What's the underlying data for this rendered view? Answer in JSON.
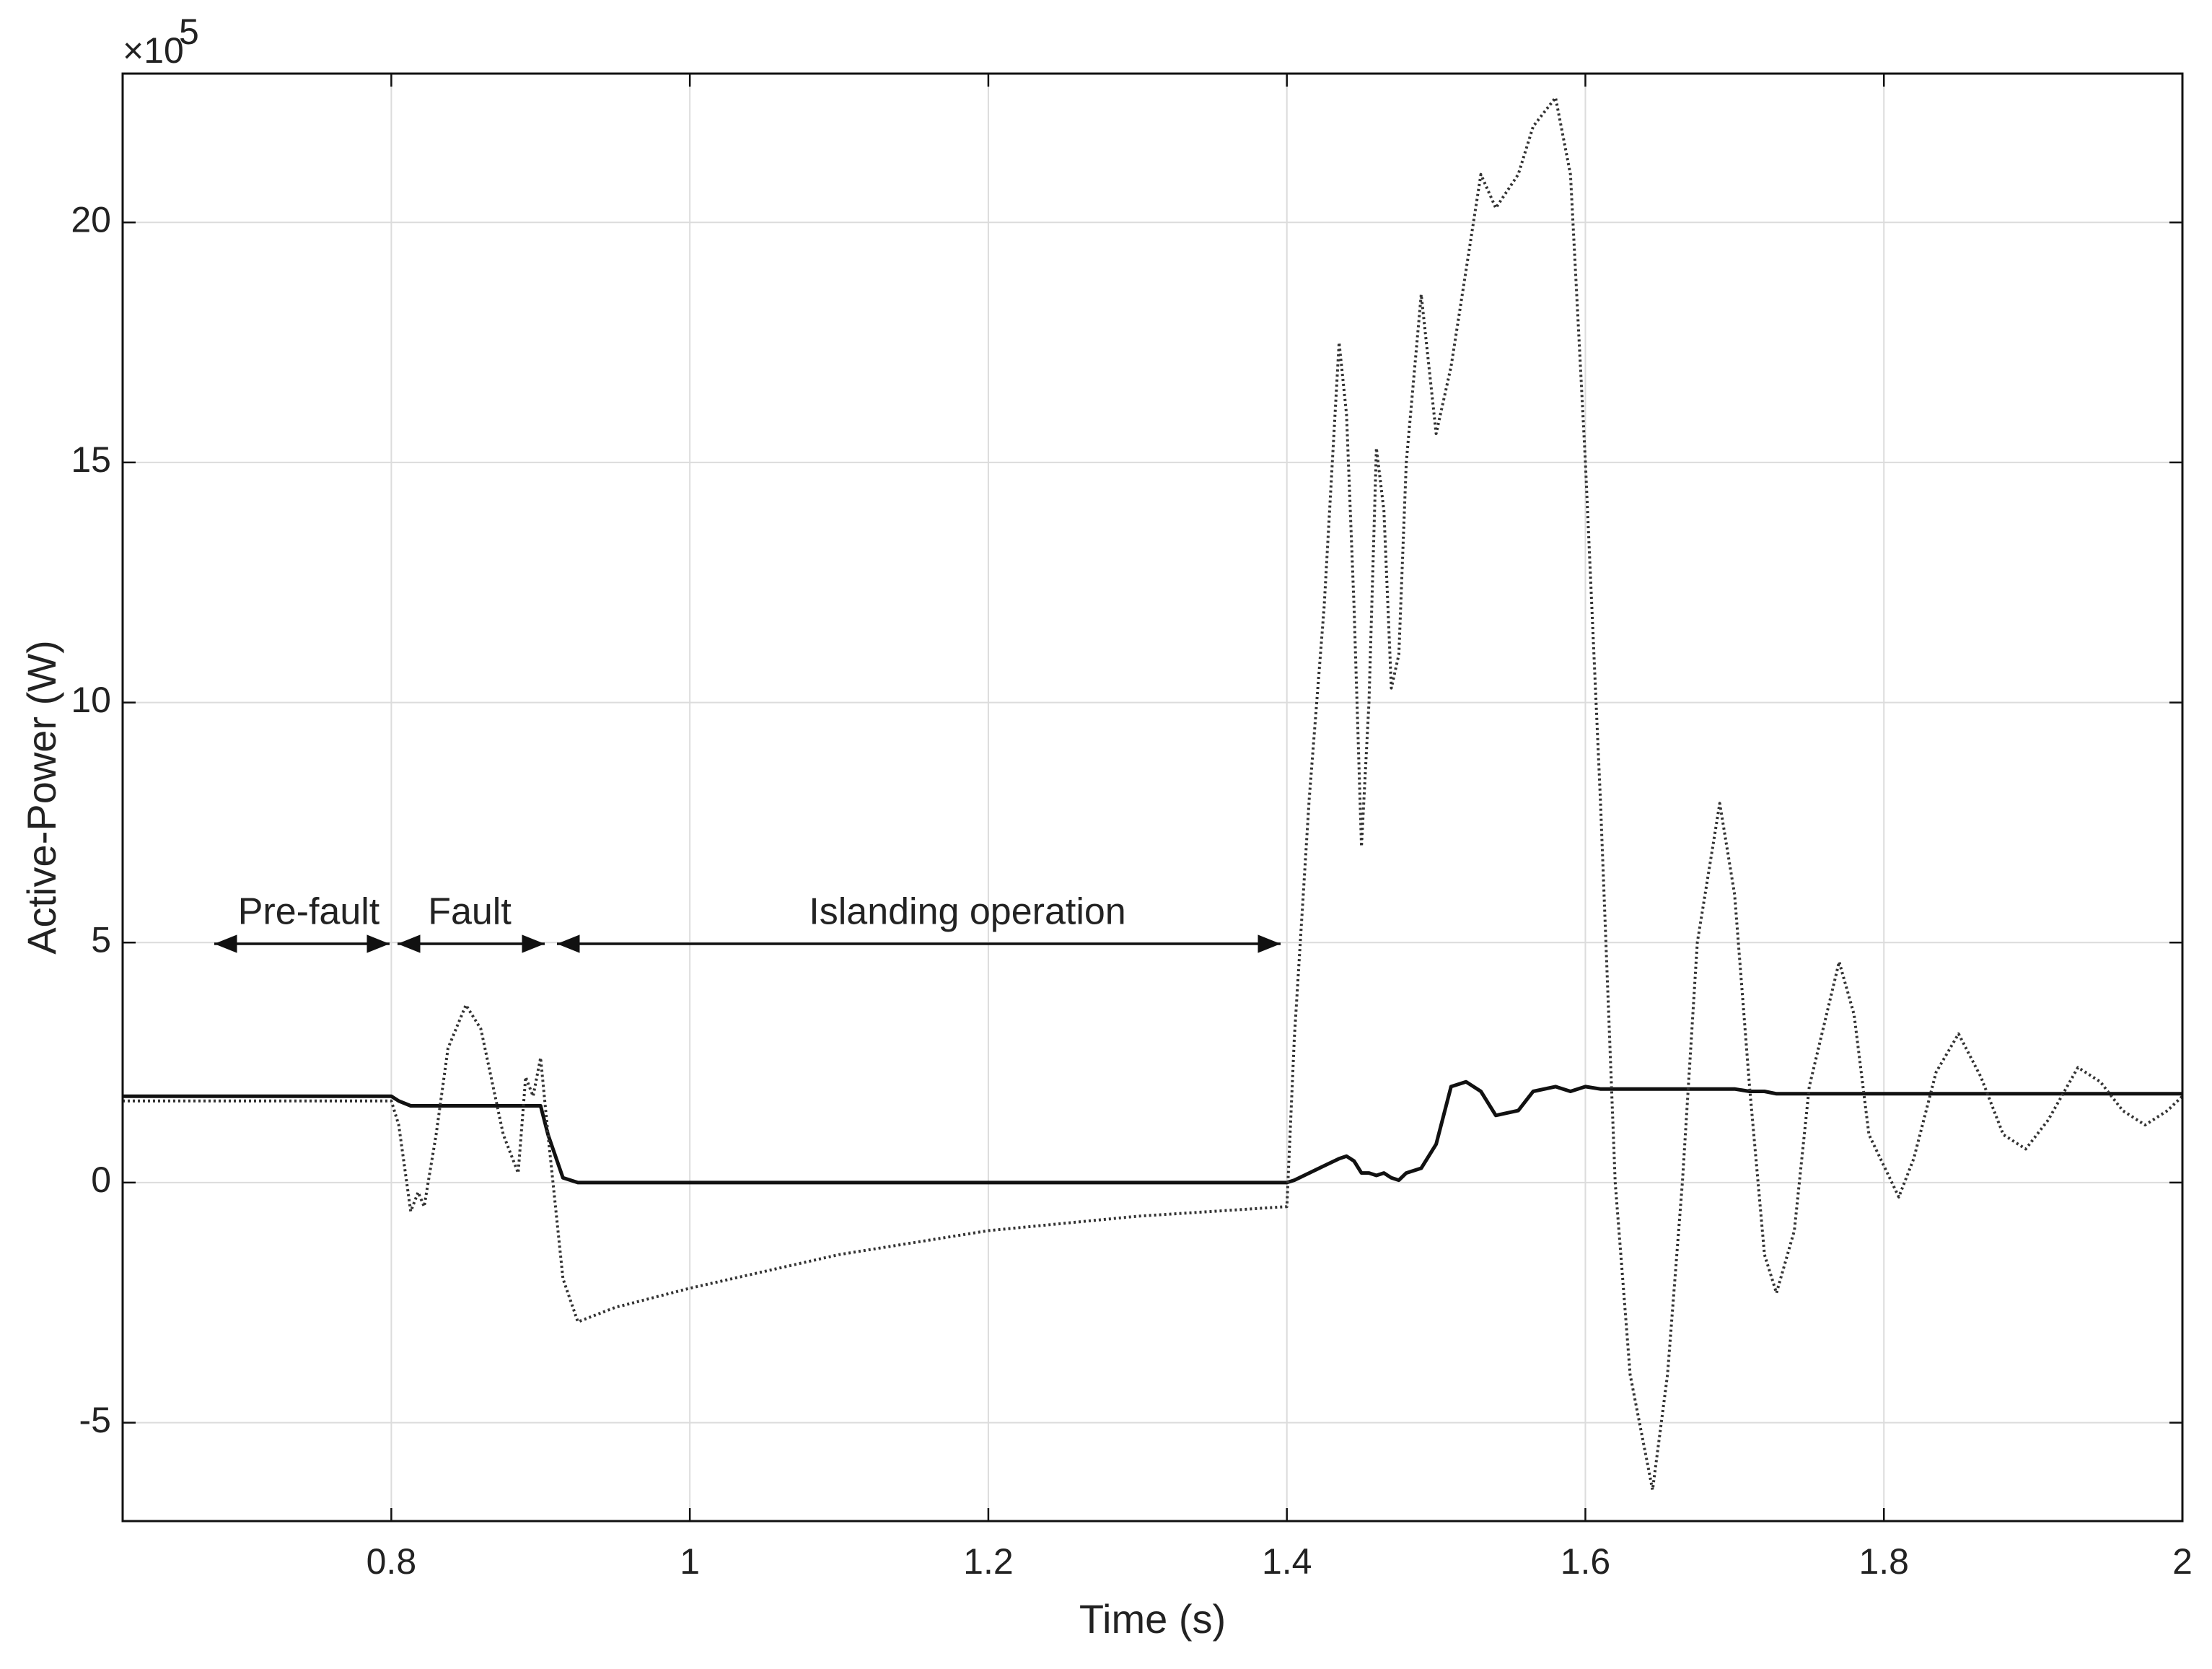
{
  "chart_data": {
    "type": "line",
    "x_label": "Time (s)",
    "y_label": "Active-Power (W)",
    "y_multiplier": {
      "base": "×10",
      "exponent": "5"
    },
    "xlim": [
      0.62,
      2
    ],
    "ylim": [
      -7.05,
      23.1
    ],
    "xticks": [
      0.8,
      1,
      1.2,
      1.4,
      1.6,
      1.8,
      2
    ],
    "yticks": [
      -5,
      0,
      5,
      10,
      15,
      20
    ],
    "grid": true,
    "annotations": [
      "Pre-fault",
      "Fault",
      "Islanding operation"
    ],
    "x": [
      0.62,
      0.8,
      0.805,
      0.813,
      0.818,
      0.822,
      0.83,
      0.838,
      0.85,
      0.86,
      0.875,
      0.885,
      0.89,
      0.895,
      0.9,
      0.905,
      0.915,
      0.925,
      0.95,
      1.0,
      1.1,
      1.2,
      1.3,
      1.4,
      1.405,
      1.415,
      1.425,
      1.435,
      1.44,
      1.445,
      1.45,
      1.455,
      1.46,
      1.465,
      1.47,
      1.475,
      1.48,
      1.49,
      1.5,
      1.51,
      1.52,
      1.53,
      1.54,
      1.555,
      1.565,
      1.58,
      1.59,
      1.6,
      1.61,
      1.62,
      1.63,
      1.645,
      1.655,
      1.665,
      1.675,
      1.69,
      1.7,
      1.71,
      1.72,
      1.728,
      1.74,
      1.75,
      1.77,
      1.78,
      1.79,
      1.81,
      1.82,
      1.835,
      1.85,
      1.865,
      1.88,
      1.895,
      1.91,
      1.93,
      1.945,
      1.96,
      1.975,
      1.99,
      2.0
    ],
    "series": [
      {
        "color": "#111111",
        "style": "solid",
        "values": [
          1.8,
          1.8,
          1.7,
          1.6,
          1.6,
          1.6,
          1.6,
          1.6,
          1.6,
          1.6,
          1.6,
          1.6,
          1.6,
          1.6,
          1.6,
          1.0,
          0.1,
          0,
          0,
          0,
          0,
          0,
          0,
          0,
          0.05,
          0.2,
          0.35,
          0.5,
          0.55,
          0.45,
          0.2,
          0.2,
          0.15,
          0.2,
          0.1,
          0.05,
          0.2,
          0.3,
          0.8,
          2.0,
          2.1,
          1.9,
          1.4,
          1.5,
          1.9,
          2.0,
          1.9,
          2.0,
          1.95,
          1.95,
          1.95,
          1.95,
          1.95,
          1.95,
          1.95,
          1.95,
          1.95,
          1.9,
          1.9,
          1.85,
          1.85,
          1.85,
          1.85,
          1.85,
          1.85,
          1.85,
          1.85,
          1.85,
          1.85,
          1.85,
          1.85,
          1.85,
          1.85,
          1.85,
          1.85,
          1.85,
          1.85,
          1.85,
          1.85
        ]
      },
      {
        "color": "#333333",
        "style": "dotted",
        "values": [
          1.7,
          1.7,
          1.2,
          -0.6,
          -0.2,
          -0.5,
          1.0,
          2.8,
          3.7,
          3.2,
          1.0,
          0.2,
          2.2,
          1.8,
          2.6,
          1.0,
          -2.0,
          -2.9,
          -2.6,
          -2.2,
          -1.5,
          -1.0,
          -0.7,
          -0.5,
          3.0,
          8.0,
          12,
          17.5,
          16,
          12,
          7.0,
          10,
          15.3,
          14,
          10.3,
          11,
          15,
          18.5,
          15.6,
          17,
          19,
          21,
          20.3,
          21,
          22,
          22.6,
          21,
          15,
          8,
          0,
          -4,
          -6.4,
          -4,
          0,
          5,
          7.9,
          6,
          2,
          -1.5,
          -2.3,
          -1,
          2,
          4.6,
          3.5,
          1,
          -0.3,
          0.5,
          2.3,
          3.1,
          2.2,
          1.0,
          0.7,
          1.3,
          2.4,
          2.1,
          1.5,
          1.2,
          1.5,
          1.8
        ]
      }
    ]
  }
}
